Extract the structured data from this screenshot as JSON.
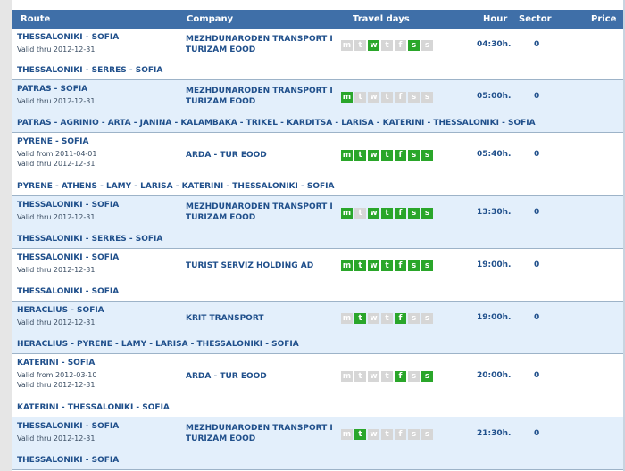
{
  "header": {
    "route": "Route",
    "company": "Company",
    "travel_days": "Travel days",
    "hour": "Hour",
    "sector": "Sector",
    "price": "Price"
  },
  "rows": [
    {
      "route": "THESSALONIKI - SOFIA",
      "valid_from": "",
      "valid_thru": "Valid thru 2012-12-31",
      "company": "MEZHDUNARODEN TRANSPORT I TURIZAM EOOD",
      "days": [
        0,
        0,
        1,
        0,
        0,
        1,
        0
      ],
      "hour": "04:30h.",
      "sector": "0",
      "via": "THESSALONIKI - SERRES - SOFIA"
    },
    {
      "route": "PATRAS - SOFIA",
      "valid_from": "",
      "valid_thru": "Valid thru 2012-12-31",
      "company": "MEZHDUNARODEN TRANSPORT I TURIZAM EOOD",
      "days": [
        1,
        0,
        0,
        0,
        0,
        0,
        0
      ],
      "hour": "05:00h.",
      "sector": "0",
      "via": "PATRAS - AGRINIO - ARTA - JANINA - KALAMBAKA - TRIKEL - KARDITSA - LARISA - KATERINI - THESSALONIKI - SOFIA"
    },
    {
      "route": "PYRENE - SOFIA",
      "valid_from": "Valid from 2011-04-01",
      "valid_thru": "Valid thru 2012-12-31",
      "company": "ARDA - TUR EOOD",
      "days": [
        1,
        1,
        1,
        1,
        1,
        1,
        1
      ],
      "hour": "05:40h.",
      "sector": "0",
      "via": "PYRENE - ATHENS - LAMY - LARISA - KATERINI - THESSALONIKI - SOFIA"
    },
    {
      "route": "THESSALONIKI - SOFIA",
      "valid_from": "",
      "valid_thru": "Valid thru 2012-12-31",
      "company": "MEZHDUNARODEN TRANSPORT I TURIZAM EOOD",
      "days": [
        1,
        0,
        1,
        1,
        1,
        1,
        1
      ],
      "hour": "13:30h.",
      "sector": "0",
      "via": "THESSALONIKI - SERRES - SOFIA"
    },
    {
      "route": "THESSALONIKI - SOFIA",
      "valid_from": "",
      "valid_thru": "Valid thru 2012-12-31",
      "company": "TURIST SERVIZ HOLDING AD",
      "days": [
        1,
        1,
        1,
        1,
        1,
        1,
        1
      ],
      "hour": "19:00h.",
      "sector": "0",
      "via": "THESSALONIKI - SOFIA"
    },
    {
      "route": "HERACLIUS - SOFIA",
      "valid_from": "",
      "valid_thru": "Valid thru 2012-12-31",
      "company": "KRIT TRANSPORT",
      "days": [
        0,
        1,
        0,
        0,
        1,
        0,
        0
      ],
      "hour": "19:00h.",
      "sector": "0",
      "via": "HERACLIUS - PYRENE - LAMY - LARISA - THESSALONIKI - SOFIA"
    },
    {
      "route": "KATERINI - SOFIA",
      "valid_from": "Valid from 2012-03-10",
      "valid_thru": "Valid thru 2012-12-31",
      "company": "ARDA - TUR EOOD",
      "days": [
        0,
        0,
        0,
        0,
        1,
        0,
        1
      ],
      "hour": "20:00h.",
      "sector": "0",
      "via": "KATERINI - THESSALONIKI - SOFIA"
    },
    {
      "route": "THESSALONIKI - SOFIA",
      "valid_from": "",
      "valid_thru": "Valid thru 2012-12-31",
      "company": "MEZHDUNARODEN TRANSPORT I TURIZAM EOOD",
      "days": [
        0,
        1,
        0,
        0,
        0,
        0,
        0
      ],
      "hour": "21:30h.",
      "sector": "0",
      "via": "THESSALONIKI - SOFIA"
    }
  ],
  "day_letters": [
    "m",
    "t",
    "w",
    "t",
    "f",
    "s",
    "s"
  ],
  "colors": {
    "header_bg": "#3f6fa8",
    "alt_row_bg": "#e3effb",
    "day_on": "#2aa62a",
    "day_off": "#d6d6d6",
    "text": "#1f4f8b"
  }
}
